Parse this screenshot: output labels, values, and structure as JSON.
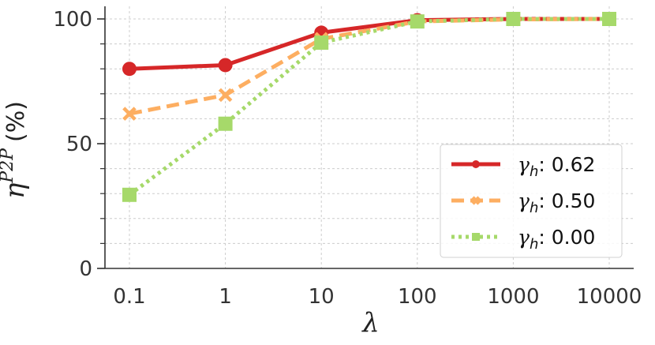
{
  "chart_data": {
    "type": "line",
    "x_scale": "log",
    "categories": [
      "0.1",
      "1",
      "10",
      "100",
      "1000",
      "10000"
    ],
    "x": [
      0.1,
      1,
      10,
      100,
      1000,
      10000
    ],
    "xlabel": "λ",
    "ylabel": {
      "base": "η",
      "sup": "P2P",
      "unit": "(%)"
    },
    "ylim": [
      0,
      100
    ],
    "yticks": [
      0,
      50,
      100
    ],
    "grid": true,
    "legend_position": "bottom-right",
    "series": [
      {
        "name": "0.62",
        "legend_prefix": "γ",
        "legend_sub": "h",
        "color": "#d62728",
        "style": "solid",
        "marker": "circle",
        "values": [
          80,
          81.5,
          94.5,
          99.5,
          100,
          100
        ]
      },
      {
        "name": "0.50",
        "legend_prefix": "γ",
        "legend_sub": "h",
        "color": "#fdae61",
        "style": "dashed",
        "marker": "x",
        "values": [
          62,
          69.5,
          92,
          99,
          99.8,
          100
        ]
      },
      {
        "name": "0.00",
        "legend_prefix": "γ",
        "legend_sub": "h",
        "color": "#a6d96a",
        "style": "dotted",
        "marker": "square",
        "values": [
          29.5,
          58,
          90.5,
          99,
          100,
          100
        ]
      }
    ]
  }
}
